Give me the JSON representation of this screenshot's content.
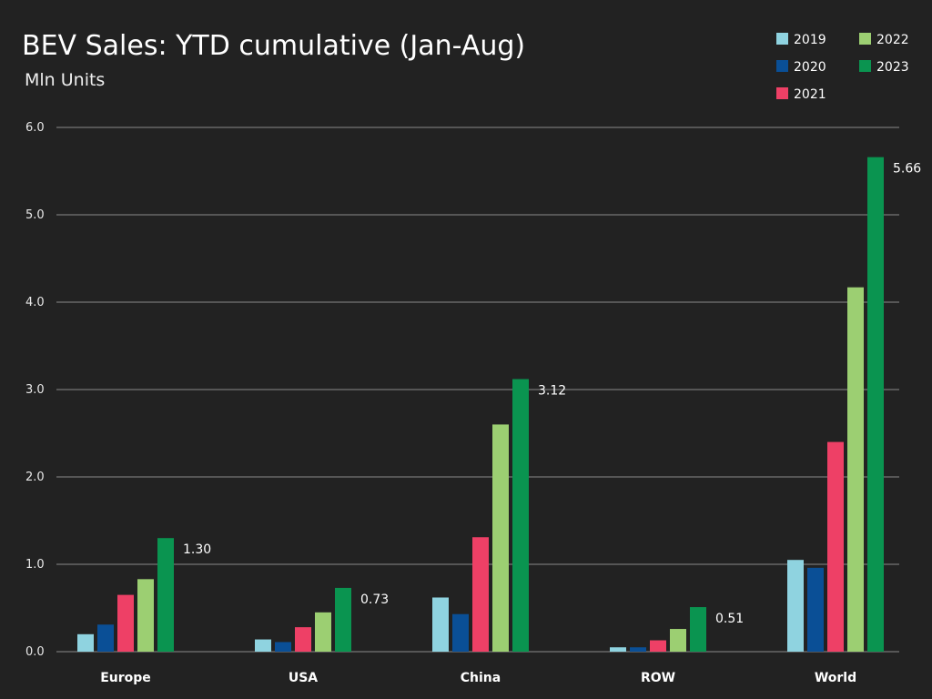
{
  "chart_data": {
    "type": "bar",
    "title": "BEV Sales: YTD cumulative (Jan-Aug)",
    "subtitle": "Mln Units",
    "categories": [
      "Europe",
      "USA",
      "China",
      "ROW",
      "World"
    ],
    "series": [
      {
        "name": "2019",
        "color": "#8fd3e0",
        "values": [
          0.2,
          0.14,
          0.62,
          0.05,
          1.05
        ]
      },
      {
        "name": "2020",
        "color": "#0a4f96",
        "values": [
          0.31,
          0.11,
          0.43,
          0.05,
          0.96
        ]
      },
      {
        "name": "2021",
        "color": "#ee4066",
        "values": [
          0.65,
          0.28,
          1.31,
          0.13,
          2.4
        ]
      },
      {
        "name": "2022",
        "color": "#9ccf72",
        "values": [
          0.83,
          0.45,
          2.6,
          0.26,
          4.17
        ]
      },
      {
        "name": "2023",
        "color": "#0a9450",
        "values": [
          1.3,
          0.73,
          3.12,
          0.51,
          5.66
        ]
      }
    ],
    "data_labels": [
      "1.30",
      "0.73",
      "3.12",
      "0.51",
      "5.66"
    ],
    "ylim": [
      0,
      6.0
    ],
    "yticks": [
      "0.0",
      "1.0",
      "2.0",
      "3.0",
      "4.0",
      "5.0",
      "6.0"
    ],
    "grid": true,
    "legend_position": "top-right",
    "legend_order": [
      "2019",
      "2022",
      "2020",
      "2023",
      "2021"
    ]
  },
  "colors": {
    "background": "#222222",
    "gridline": "#8a8a8a",
    "text": "#ffffff"
  }
}
